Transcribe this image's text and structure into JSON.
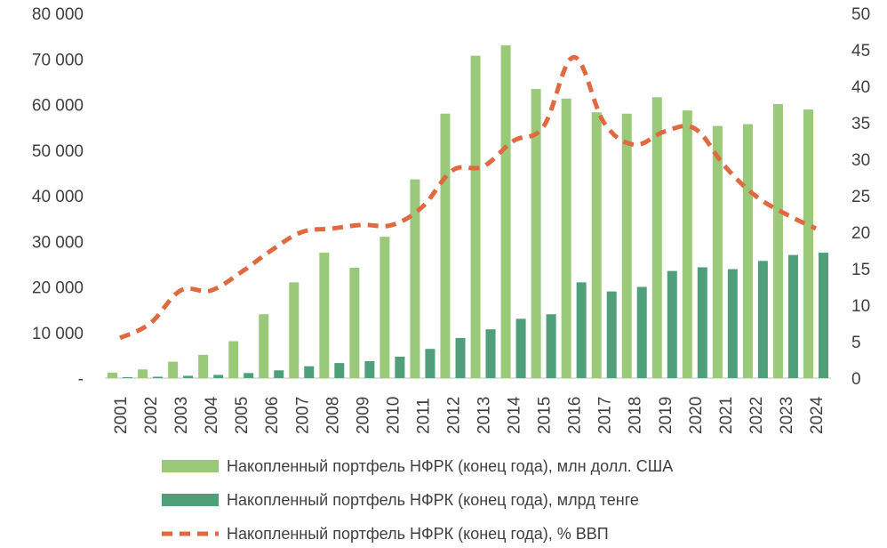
{
  "chart_data": {
    "type": "bar",
    "categories": [
      "2001",
      "2002",
      "2003",
      "2004",
      "2005",
      "2006",
      "2007",
      "2008",
      "2009",
      "2010",
      "2011",
      "2012",
      "2013",
      "2014",
      "2015",
      "2016",
      "2017",
      "2018",
      "2019",
      "2020",
      "2021",
      "2022",
      "2023",
      "2024"
    ],
    "series": [
      {
        "name": "Накопленный портфель НФРК (конец года), млн долл. США",
        "type": "bar",
        "axis": "left",
        "color": "#9bc97a",
        "values": [
          1200,
          1900,
          3600,
          5100,
          8100,
          14000,
          21000,
          27500,
          24200,
          31000,
          43600,
          58000,
          70700,
          73000,
          63400,
          61300,
          58300,
          58000,
          61600,
          58700,
          55300,
          55700,
          60100,
          58900
        ]
      },
      {
        "name": "Накопленный портфель НФРК (конец года), млрд тенге",
        "type": "bar",
        "axis": "left",
        "color": "#4fa07a",
        "values": [
          200,
          300,
          500,
          700,
          1100,
          1700,
          2600,
          3300,
          3700,
          4700,
          6400,
          8800,
          10700,
          13000,
          14000,
          21000,
          19000,
          20000,
          23500,
          24300,
          23900,
          25700,
          27000,
          27500
        ]
      },
      {
        "name": "Накопленный портфель НФРК (конец года), % ВВП",
        "type": "line",
        "axis": "right",
        "color": "#e0693f",
        "style": "dashed",
        "values": [
          5.5,
          7.5,
          12,
          12,
          14.5,
          17.5,
          20,
          20.5,
          21,
          21,
          23.5,
          28.5,
          29,
          32.5,
          34.5,
          44,
          35,
          32,
          33.8,
          34.2,
          29,
          25,
          22.5,
          20.5
        ]
      }
    ],
    "yticks_left": [
      "80 000",
      "70 000",
      "60 000",
      "50 000",
      "40 000",
      "30 000",
      "20 000",
      "10 000",
      "-"
    ],
    "yticks_right": [
      "50",
      "45",
      "40",
      "35",
      "30",
      "25",
      "20",
      "15",
      "10",
      "5",
      "0"
    ],
    "ylim_left": [
      0,
      80000
    ],
    "ylim_right": [
      0,
      50
    ],
    "grid": false,
    "legend_position": "bottom"
  }
}
